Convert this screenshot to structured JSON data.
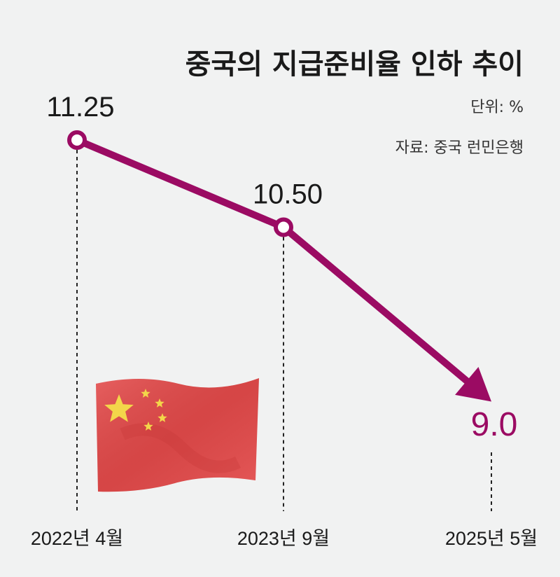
{
  "chart_data": {
    "type": "line",
    "title": "중국의 지급준비율 인하 추이",
    "unit_label": "단위: %",
    "source_label": "자료: 중국 런민은행",
    "categories": [
      "2022년 4월",
      "2023년 9월",
      "2025년 5월"
    ],
    "values": [
      11.25,
      10.5,
      9.0
    ],
    "value_labels": [
      "11.25",
      "10.50",
      "9.0"
    ],
    "ylim": [
      8.5,
      11.5
    ],
    "grid": false,
    "legend": "none",
    "colors": {
      "line": "#9b0b63",
      "highlight_label": "#9b0b63",
      "text": "#1a1a1a"
    },
    "illustration": "china-flag-icon"
  }
}
